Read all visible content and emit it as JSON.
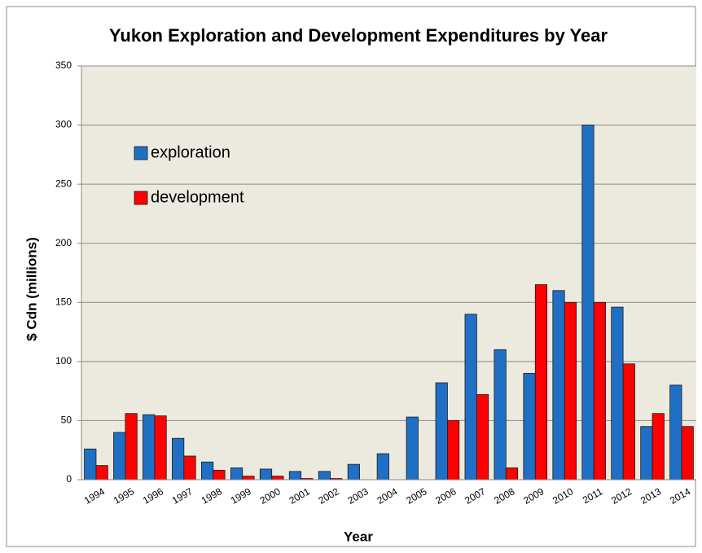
{
  "chart_data": {
    "type": "bar",
    "title": "Yukon Exploration and Development Expenditures by Year",
    "x_label": "Year",
    "y_label": "$ Cdn (millions)",
    "categories": [
      "1994",
      "1995",
      "1996",
      "1997",
      "1998",
      "1999",
      "2000",
      "2001",
      "2002",
      "2003",
      "2004",
      "2005",
      "2006",
      "2007",
      "2008",
      "2009",
      "2010",
      "2011",
      "2012",
      "2013",
      "2014"
    ],
    "series": [
      {
        "name": "exploration",
        "color": "#1f6fc5",
        "values": [
          26,
          40,
          55,
          35,
          15,
          10,
          9,
          7,
          7,
          13,
          22,
          53,
          82,
          140,
          110,
          90,
          160,
          300,
          146,
          45,
          80
        ]
      },
      {
        "name": "development",
        "color": "#ff0000",
        "values": [
          12,
          56,
          54,
          20,
          8,
          3,
          3,
          1,
          1,
          0,
          0,
          0,
          50,
          72,
          10,
          165,
          150,
          150,
          98,
          56,
          45
        ]
      }
    ],
    "ylim": [
      0,
      350
    ],
    "yticks": [
      0,
      50,
      100,
      150,
      200,
      250,
      300,
      350
    ],
    "grid": true,
    "legend": "upper left"
  }
}
